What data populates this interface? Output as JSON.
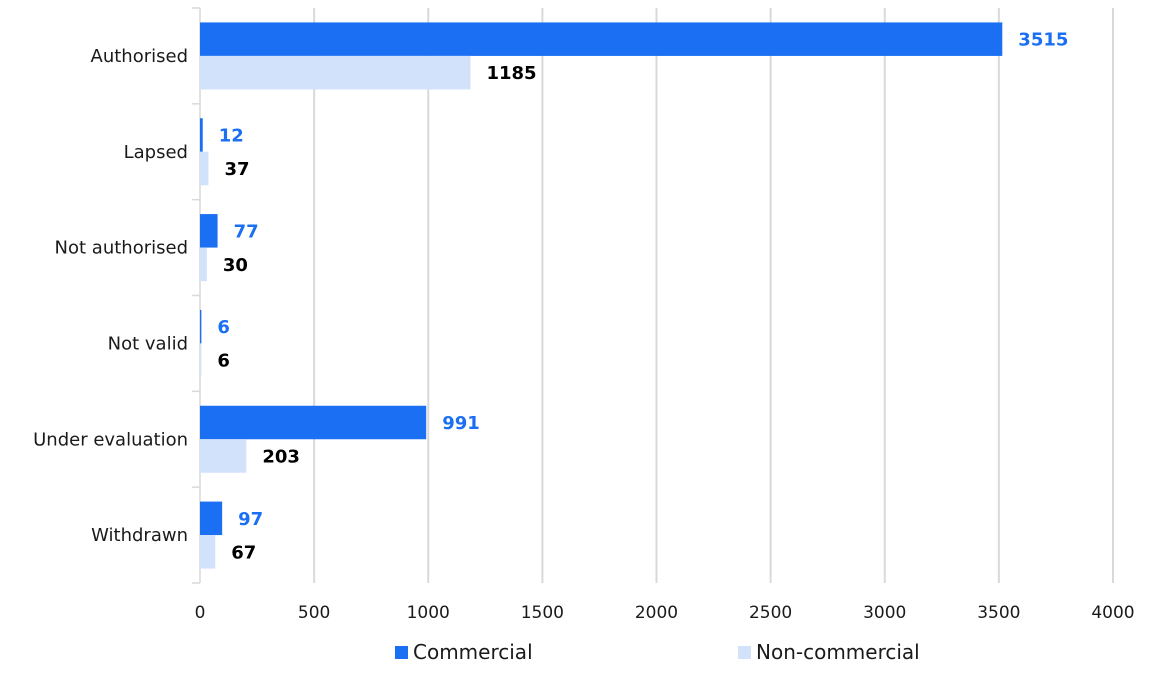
{
  "chart_data": {
    "type": "bar",
    "orientation": "horizontal",
    "categories": [
      "Authorised",
      "Lapsed",
      "Not authorised",
      "Not valid",
      "Under evaluation",
      "Withdrawn"
    ],
    "series": [
      {
        "name": "Commercial",
        "values": [
          3515,
          12,
          77,
          6,
          991,
          97
        ],
        "color": "#1a6ff2",
        "label_color": "#1a6ff2"
      },
      {
        "name": "Non-commercial",
        "values": [
          1185,
          37,
          30,
          6,
          203,
          67
        ],
        "color": "#d2e2fb",
        "label_color": "#000000"
      }
    ],
    "x_ticks": [
      "0",
      "500",
      "1000",
      "1500",
      "2000",
      "2500",
      "3000",
      "3500",
      "4000"
    ],
    "xlim": [
      0,
      4000
    ],
    "grid": true,
    "legend_position": "bottom"
  }
}
